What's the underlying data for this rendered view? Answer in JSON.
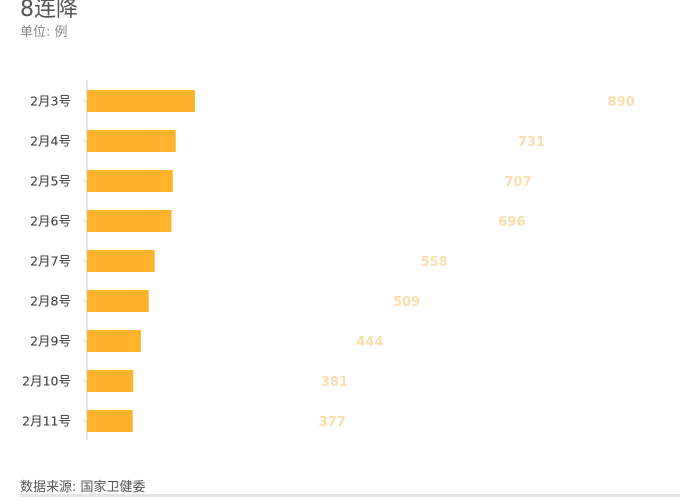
{
  "title": "8连降",
  "unit": "单位: 例",
  "source": "数据来源: 国家卫健委",
  "chart_data": {
    "type": "bar",
    "orientation": "horizontal",
    "categories": [
      "2月3号",
      "2月4号",
      "2月5号",
      "2月6号",
      "2月7号",
      "2月8号",
      "2月9号",
      "2月10号",
      "2月11号"
    ],
    "values": [
      890,
      731,
      707,
      696,
      558,
      509,
      444,
      381,
      377
    ],
    "data_labels": true,
    "grid": false,
    "colors": {
      "bar": "#ffb22b",
      "label": "#f9dfae",
      "tick": "#333333",
      "axis": "#cccccc"
    }
  }
}
